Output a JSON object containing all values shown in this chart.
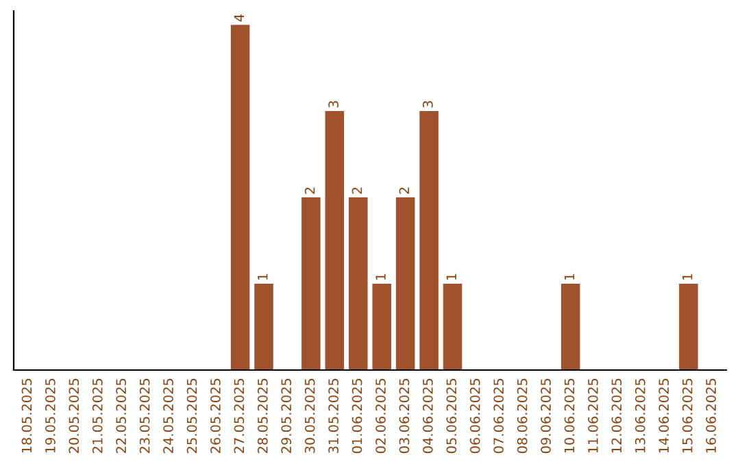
{
  "chart_data": {
    "type": "bar",
    "categories": [
      "18.05.2025",
      "19.05.2025",
      "20.05.2025",
      "21.05.2025",
      "22.05.2025",
      "23.05.2025",
      "24.05.2025",
      "25.05.2025",
      "26.05.2025",
      "27.05.2025",
      "28.05.2025",
      "29.05.2025",
      "30.05.2025",
      "31.05.2025",
      "01.06.2025",
      "02.06.2025",
      "03.06.2025",
      "04.06.2025",
      "05.06.2025",
      "06.06.2025",
      "07.06.2025",
      "08.06.2025",
      "09.06.2025",
      "10.06.2025",
      "11.06.2025",
      "12.06.2025",
      "13.06.2025",
      "14.06.2025",
      "15.06.2025",
      "16.06.2025"
    ],
    "values": [
      0,
      0,
      0,
      0,
      0,
      0,
      0,
      0,
      0,
      4,
      1,
      0,
      2,
      3,
      2,
      1,
      2,
      3,
      1,
      0,
      0,
      0,
      0,
      1,
      0,
      0,
      0,
      0,
      1,
      0
    ],
    "value_labels": [
      null,
      null,
      null,
      null,
      null,
      null,
      null,
      null,
      null,
      "4",
      "1",
      null,
      "2",
      "3",
      "2",
      "1",
      "2",
      "3",
      "1",
      null,
      null,
      null,
      null,
      "1",
      null,
      null,
      null,
      null,
      "1",
      null
    ],
    "color": "#a0522d",
    "tick_labels": "x"
  }
}
